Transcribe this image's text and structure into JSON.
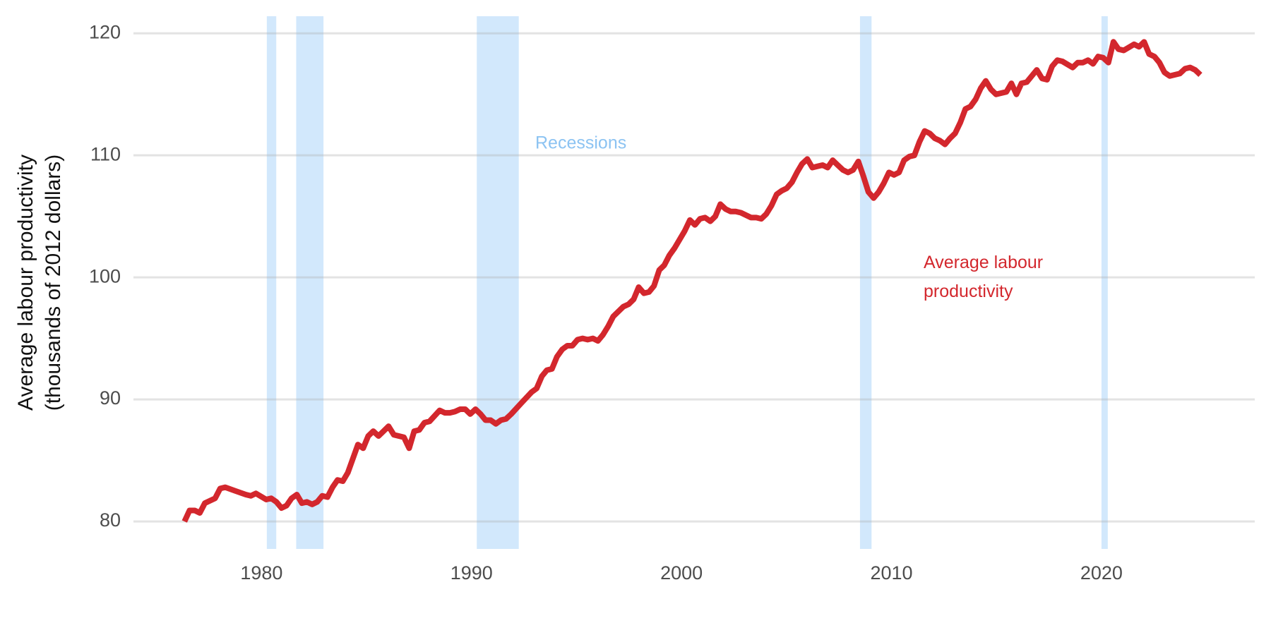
{
  "chart_data": {
    "type": "line",
    "ylabel": [
      "Average labour productivity",
      "(thousands of 2012 dollars)"
    ],
    "recessions": {
      "name": "Recessions",
      "color": "#d2e8fc",
      "spans": [
        [
          1980.25,
          1980.7
        ],
        [
          1981.65,
          1982.95
        ],
        [
          1990.25,
          1992.25
        ],
        [
          2008.5,
          2009.05
        ],
        [
          2020.0,
          2020.3
        ]
      ]
    },
    "xlim": [
      1973.9,
      2027.3
    ],
    "ylim": [
      77.75,
      121.4
    ],
    "xticks": [
      1980,
      1990,
      2000,
      2010,
      2020
    ],
    "yticks": [
      80,
      90,
      100,
      110,
      120
    ],
    "grid": true,
    "x": [
      1976.33,
      1976.57,
      1976.82,
      1977.06,
      1977.3,
      1977.79,
      1978.03,
      1978.27,
      1978.76,
      1979.25,
      1979.49,
      1979.73,
      1980.22,
      1980.46,
      1980.71,
      1980.95,
      1981.19,
      1981.43,
      1981.68,
      1981.92,
      1982.16,
      1982.41,
      1982.65,
      1982.89,
      1983.14,
      1983.38,
      1983.62,
      1983.87,
      1984.11,
      1984.59,
      1984.84,
      1985.08,
      1985.32,
      1985.57,
      1985.81,
      1986.05,
      1986.3,
      1986.54,
      1986.78,
      1987.03,
      1987.27,
      1987.51,
      1987.76,
      1988.0,
      1988.48,
      1988.73,
      1988.97,
      1989.21,
      1989.46,
      1989.7,
      1989.94,
      1990.19,
      1990.43,
      1990.67,
      1990.91,
      1991.16,
      1991.4,
      1991.64,
      1991.89,
      1992.37,
      1992.86,
      1993.1,
      1993.35,
      1993.59,
      1993.83,
      1994.07,
      1994.32,
      1994.56,
      1994.8,
      1995.05,
      1995.29,
      1995.53,
      1995.78,
      1996.02,
      1996.26,
      1996.51,
      1996.75,
      1997.23,
      1997.48,
      1997.72,
      1997.96,
      1998.21,
      1998.45,
      1998.69,
      1998.94,
      1999.18,
      1999.42,
      1999.67,
      2000.15,
      2000.4,
      2000.64,
      2000.88,
      2001.12,
      2001.37,
      2001.61,
      2001.85,
      2002.1,
      2002.34,
      2002.58,
      2002.83,
      2003.31,
      2003.56,
      2003.8,
      2004.04,
      2004.29,
      2004.53,
      2004.77,
      2005.01,
      2005.26,
      2005.5,
      2005.74,
      2005.99,
      2006.23,
      2006.47,
      2006.72,
      2006.96,
      2007.2,
      2007.44,
      2007.69,
      2007.93,
      2008.17,
      2008.42,
      2008.66,
      2008.9,
      2009.15,
      2009.39,
      2009.63,
      2009.88,
      2010.12,
      2010.36,
      2010.6,
      2010.85,
      2011.09,
      2011.33,
      2011.58,
      2011.82,
      2012.06,
      2012.31,
      2012.55,
      2012.79,
      2013.03,
      2013.28,
      2013.52,
      2013.76,
      2014.01,
      2014.25,
      2014.49,
      2014.74,
      2014.98,
      2015.22,
      2015.47,
      2015.71,
      2015.95,
      2016.19,
      2016.44,
      2016.68,
      2016.92,
      2017.17,
      2017.41,
      2017.65,
      2017.9,
      2018.14,
      2018.63,
      2018.87,
      2019.11,
      2019.36,
      2019.6,
      2019.84,
      2020.08,
      2020.33,
      2020.57,
      2020.81,
      2021.06,
      2021.55,
      2021.79,
      2022.03,
      2022.27,
      2022.52,
      2022.76,
      2023.0,
      2023.25,
      2023.49,
      2023.73,
      2023.98,
      2024.22,
      2024.46,
      2024.71
    ],
    "series": [
      {
        "name": "Average labour productivity",
        "color": "#d3272d",
        "values": [
          80.0,
          80.9,
          80.9,
          80.7,
          81.5,
          81.9,
          82.7,
          82.8,
          82.5,
          82.2,
          82.1,
          82.3,
          81.8,
          81.9,
          81.6,
          81.1,
          81.3,
          81.9,
          82.2,
          81.5,
          81.6,
          81.4,
          81.6,
          82.1,
          82.0,
          82.8,
          83.4,
          83.3,
          84.0,
          86.3,
          86.0,
          87.0,
          87.4,
          87.0,
          87.4,
          87.8,
          87.1,
          87.0,
          86.9,
          86.0,
          87.4,
          87.5,
          88.1,
          88.2,
          89.1,
          88.9,
          88.9,
          89.0,
          89.2,
          89.2,
          88.8,
          89.2,
          88.8,
          88.3,
          88.3,
          88.0,
          88.3,
          88.4,
          88.8,
          89.7,
          90.6,
          90.9,
          91.9,
          92.4,
          92.5,
          93.5,
          94.1,
          94.4,
          94.4,
          94.9,
          95.0,
          94.9,
          95.0,
          94.8,
          95.3,
          96.0,
          96.8,
          97.6,
          97.8,
          98.2,
          99.2,
          98.7,
          98.8,
          99.3,
          100.6,
          101.0,
          101.8,
          102.4,
          103.8,
          104.7,
          104.3,
          104.8,
          104.9,
          104.6,
          105.0,
          106.0,
          105.6,
          105.4,
          105.4,
          105.3,
          104.9,
          104.9,
          104.8,
          105.2,
          105.9,
          106.8,
          107.1,
          107.3,
          107.8,
          108.6,
          109.3,
          109.7,
          109.0,
          109.1,
          109.2,
          109.0,
          109.6,
          109.2,
          108.8,
          108.6,
          108.8,
          109.5,
          108.3,
          107.0,
          106.5,
          107.0,
          107.7,
          108.6,
          108.4,
          108.6,
          109.6,
          109.9,
          110.0,
          111.1,
          112.0,
          111.8,
          111.4,
          111.2,
          110.9,
          111.4,
          111.8,
          112.7,
          113.8,
          114.0,
          114.6,
          115.5,
          116.1,
          115.4,
          115.0,
          115.1,
          115.2,
          115.9,
          115.0,
          115.9,
          116.0,
          116.5,
          117.0,
          116.3,
          116.2,
          117.3,
          117.8,
          117.7,
          117.2,
          117.6,
          117.6,
          117.8,
          117.5,
          118.1,
          118.0,
          117.6,
          119.3,
          118.7,
          118.6,
          119.1,
          118.9,
          119.3,
          118.3,
          118.1,
          117.6,
          116.8,
          116.5,
          116.6,
          116.7,
          117.1,
          117.2,
          117.0,
          116.6
        ]
      }
    ]
  }
}
